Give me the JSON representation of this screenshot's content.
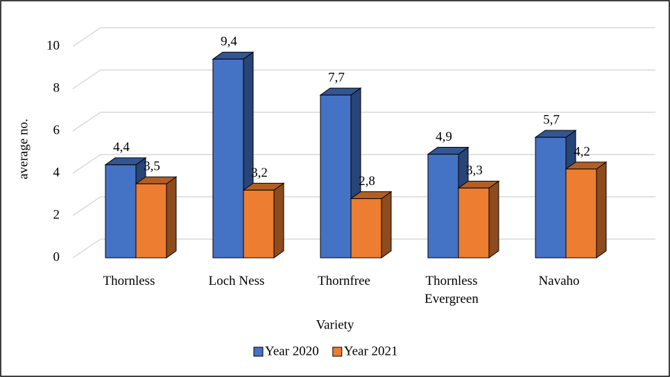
{
  "chart_data": {
    "type": "bar3d",
    "x_label": "Variety",
    "y_label": "average no.",
    "categories": [
      "Thornless",
      "Loch Ness",
      "Thornfree",
      "Thornless\nEvergreen",
      "Navaho"
    ],
    "series": [
      {
        "name": "Year 2020",
        "color": "#4472c4",
        "values": [
          4.4,
          9.4,
          7.7,
          4.9,
          5.7
        ],
        "value_labels": [
          "4,4",
          "9,4",
          "7,7",
          "4,9",
          "5,7"
        ]
      },
      {
        "name": "Year 2021",
        "color": "#ed7d31",
        "values": [
          3.5,
          3.2,
          2.8,
          3.3,
          4.2
        ],
        "value_labels": [
          "3,5",
          "3,2",
          "2,8",
          "3,3",
          "4,2"
        ]
      }
    ],
    "ylim": [
      0,
      10
    ],
    "yticks": [
      0,
      2,
      4,
      6,
      8,
      10
    ],
    "grid": true,
    "legend": "bottom"
  }
}
